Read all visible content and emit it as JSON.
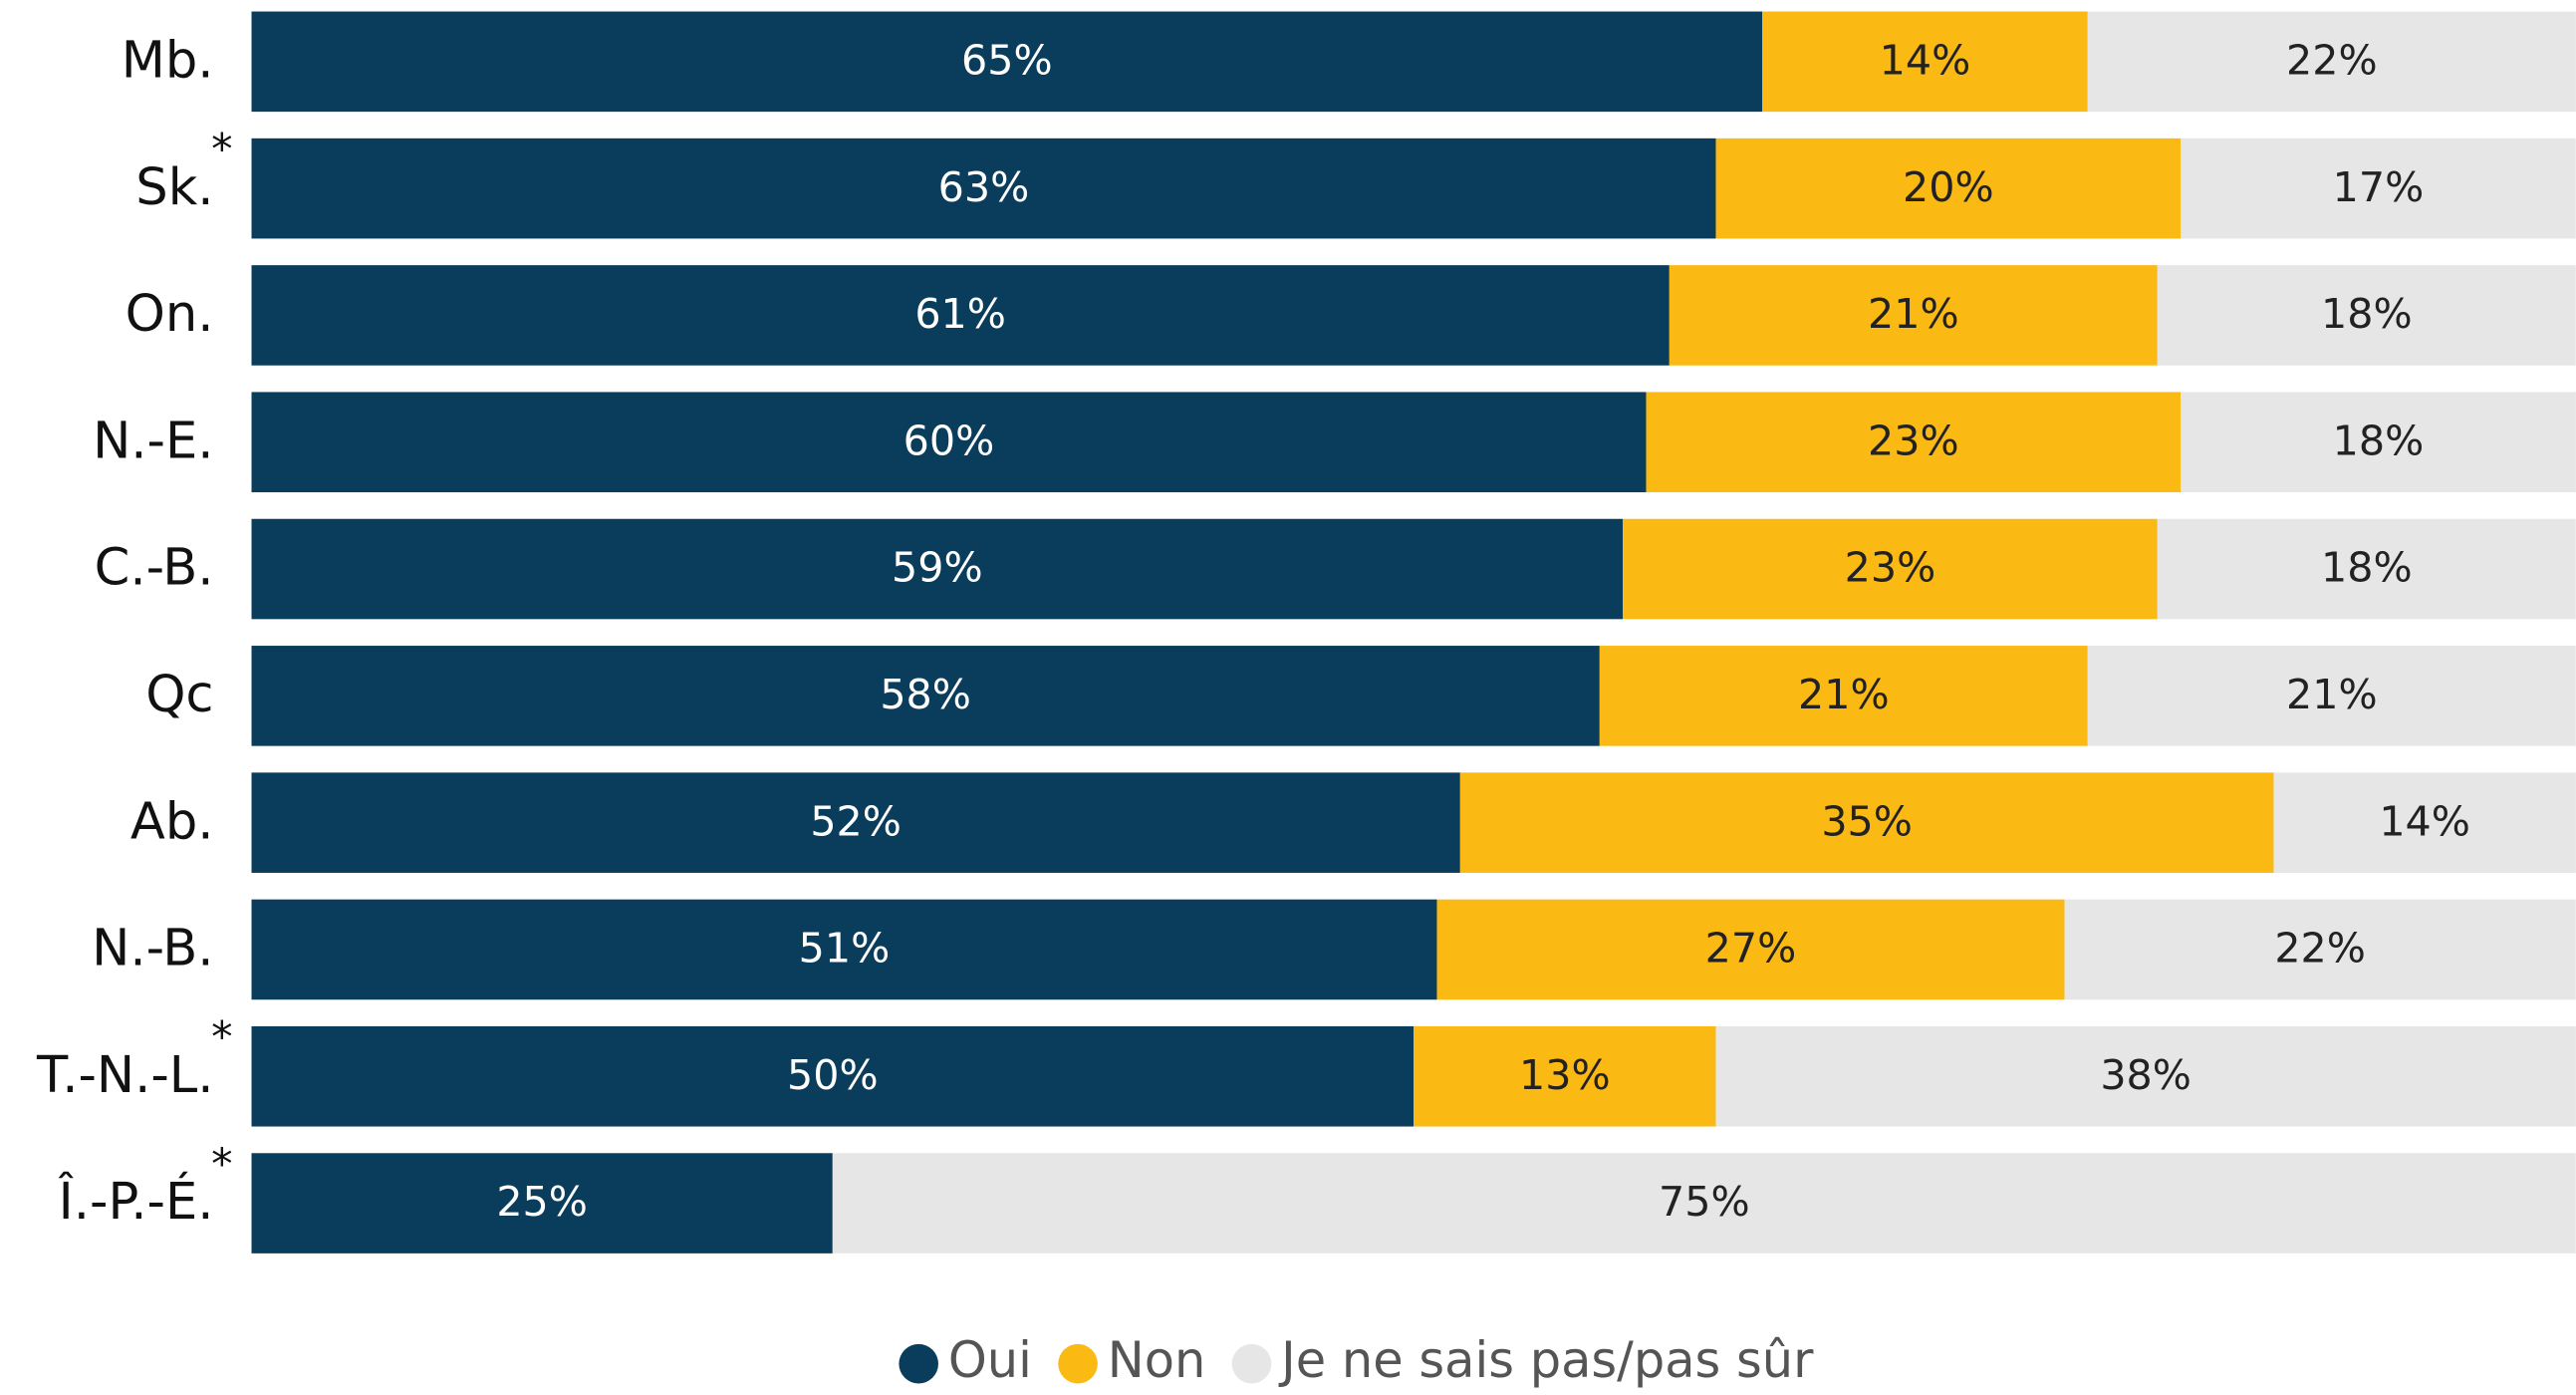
{
  "chart_data": {
    "type": "stacked_barh",
    "categories": [
      "Mb.",
      "Sk.",
      "On.",
      "N.-E.",
      "C.-B.",
      "Qc",
      "Ab.",
      "N.-B.",
      "T.-N.-L.",
      "Î.-P.-É."
    ],
    "category_marks": [
      null,
      "*",
      null,
      null,
      null,
      null,
      null,
      null,
      "*",
      "*"
    ],
    "xlim": [
      0,
      100
    ],
    "legend": "bottom",
    "series": [
      {
        "name": "Oui",
        "color": "#0a3d5c",
        "label_color": "#ffffff",
        "values": [
          65,
          63,
          61,
          60,
          59,
          58,
          52,
          51,
          50,
          25
        ],
        "value_labels": [
          "65%",
          "63%",
          "61%",
          "60%",
          "59%",
          "58%",
          "52%",
          "51%",
          "50%",
          "25%"
        ]
      },
      {
        "name": "Non",
        "color": "#fbb914",
        "label_color": "#222222",
        "values": [
          14,
          20,
          21,
          23,
          23,
          21,
          35,
          27,
          13,
          null
        ],
        "value_labels": [
          "14%",
          "20%",
          "21%",
          "23%",
          "23%",
          "21%",
          "35%",
          "27%",
          "13%",
          null
        ]
      },
      {
        "name": "Je ne sais pas/pas sûr",
        "color": "#e6e6e6",
        "label_color": "#222222",
        "values": [
          22,
          17,
          18,
          18,
          18,
          21,
          14,
          22,
          38,
          75
        ],
        "value_labels": [
          "22%",
          "17%",
          "18%",
          "18%",
          "18%",
          "21%",
          "14%",
          "22%",
          "38%",
          "75%"
        ]
      }
    ]
  }
}
